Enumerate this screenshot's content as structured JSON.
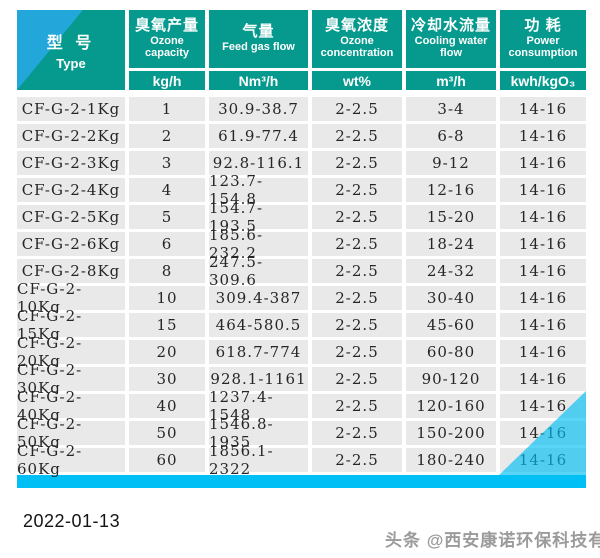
{
  "page": {
    "date": "2022-01-13",
    "watermark": "头条 @西安康诺环保科技有限"
  },
  "colors": {
    "header_teal": "#059a8d",
    "header_triangle_blue": "#23a7da",
    "bottom_bar_cyan": "#00bff5",
    "corner_triangle_cyan": "rgba(0,191,245,0.65)",
    "row_background": "#e9e9e9"
  },
  "table": {
    "columns": [
      {
        "zh": "型 号",
        "en": "Type",
        "unit": ""
      },
      {
        "zh": "臭氧产量",
        "en": "Ozone capacity",
        "unit": "kg/h"
      },
      {
        "zh": "气量",
        "en": "Feed gas flow",
        "unit": "Nm³/h"
      },
      {
        "zh": "臭氧浓度",
        "en": "Ozone concentration",
        "unit": "wt%"
      },
      {
        "zh": "冷却水流量",
        "en": "Cooling water flow",
        "unit": "m³/h"
      },
      {
        "zh": "功 耗",
        "en": "Power consumption",
        "unit": "kwh/kgO₃"
      }
    ],
    "rows": [
      [
        "CF-G-2-1Kg",
        "1",
        "30.9-38.7",
        "2-2.5",
        "3-4",
        "14-16"
      ],
      [
        "CF-G-2-2Kg",
        "2",
        "61.9-77.4",
        "2-2.5",
        "6-8",
        "14-16"
      ],
      [
        "CF-G-2-3Kg",
        "3",
        "92.8-116.1",
        "2-2.5",
        "9-12",
        "14-16"
      ],
      [
        "CF-G-2-4Kg",
        "4",
        "123.7-154.8",
        "2-2.5",
        "12-16",
        "14-16"
      ],
      [
        "CF-G-2-5Kg",
        "5",
        "154.7-193.5",
        "2-2.5",
        "15-20",
        "14-16"
      ],
      [
        "CF-G-2-6Kg",
        "6",
        "185.6-232.2",
        "2-2.5",
        "18-24",
        "14-16"
      ],
      [
        "CF-G-2-8Kg",
        "8",
        "247.5-309.6",
        "2-2.5",
        "24-32",
        "14-16"
      ],
      [
        "CF-G-2-10Kg",
        "10",
        "309.4-387",
        "2-2.5",
        "30-40",
        "14-16"
      ],
      [
        "CF-G-2-15Kg",
        "15",
        "464-580.5",
        "2-2.5",
        "45-60",
        "14-16"
      ],
      [
        "CF-G-2-20Kg",
        "20",
        "618.7-774",
        "2-2.5",
        "60-80",
        "14-16"
      ],
      [
        "CF-G-2-30Kg",
        "30",
        "928.1-1161",
        "2-2.5",
        "90-120",
        "14-16"
      ],
      [
        "CF-G-2-40Kg",
        "40",
        "1237.4-1548",
        "2-2.5",
        "120-160",
        "14-16"
      ],
      [
        "CF-G-2-50Kg",
        "50",
        "1546.8-1935",
        "2-2.5",
        "150-200",
        "14-16"
      ],
      [
        "CF-G-2-60Kg",
        "60",
        "1856.1-2322",
        "2-2.5",
        "180-240",
        "14-16"
      ]
    ]
  }
}
